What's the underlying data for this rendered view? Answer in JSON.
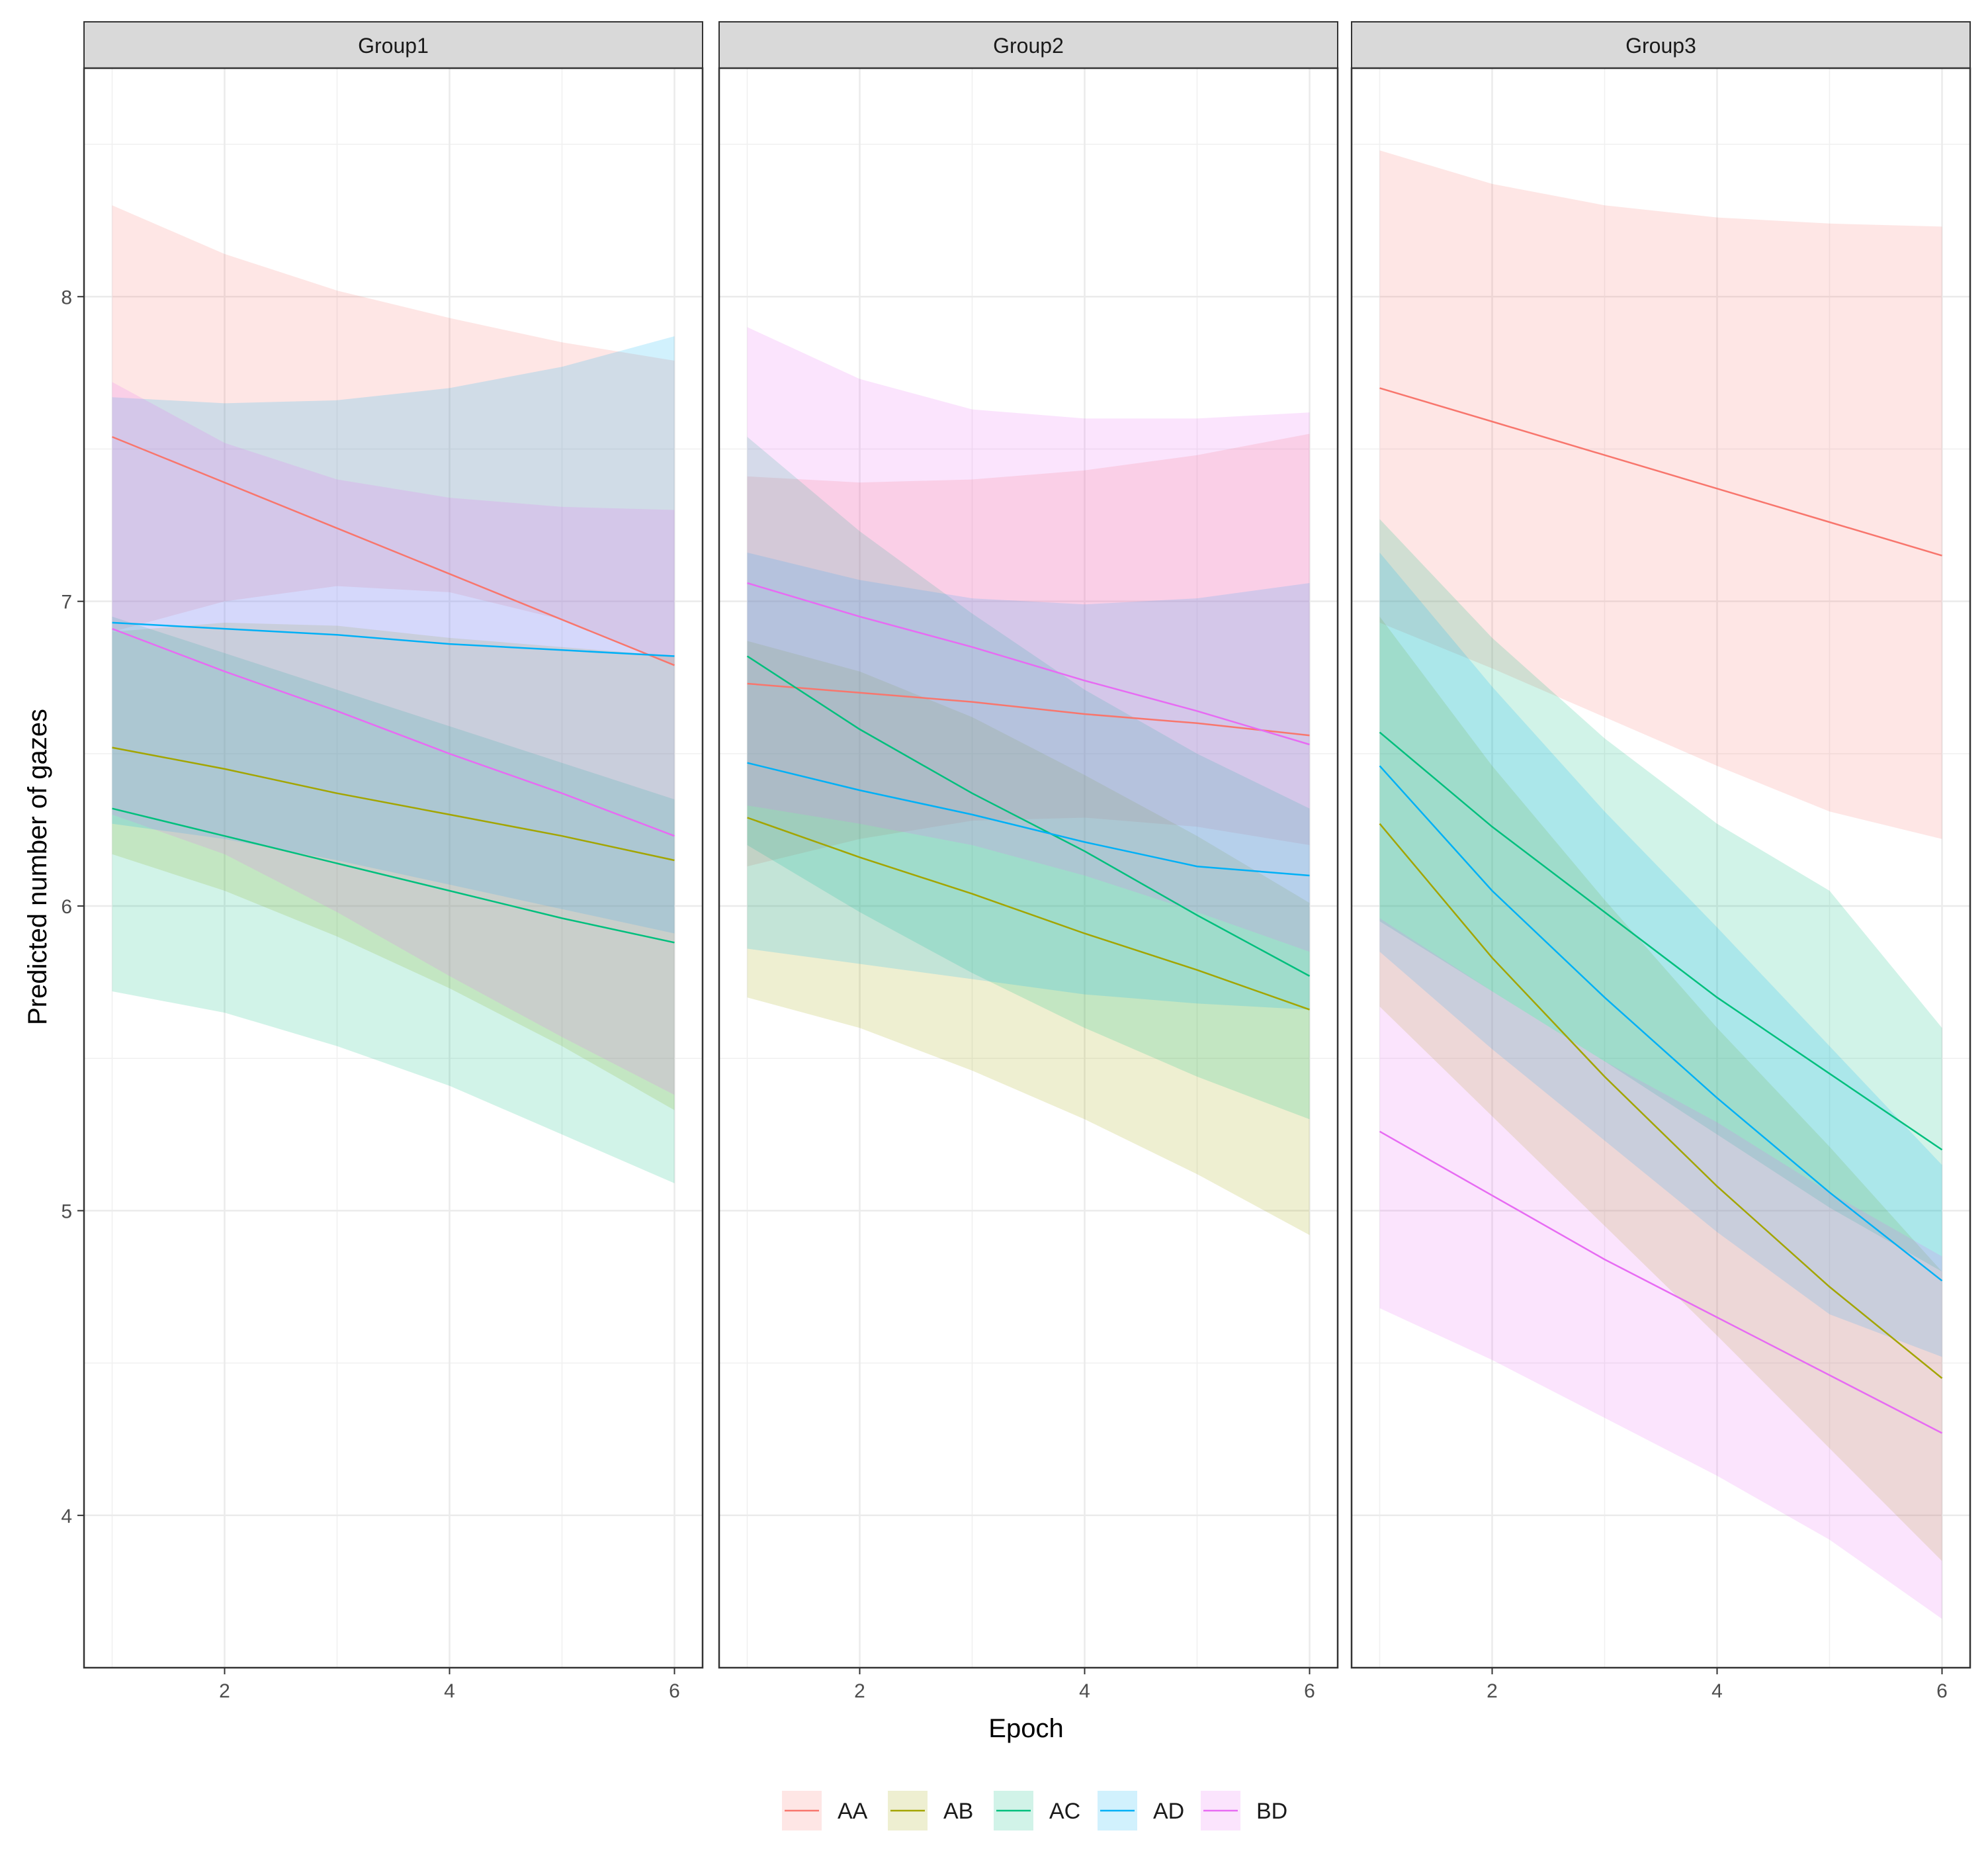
{
  "chart_data": {
    "type": "line",
    "subtype": "faceted line with confidence ribbons",
    "title": "",
    "xlabel": "Epoch",
    "ylabel": "Predicted number of gazes",
    "xlim": [
      0.75,
      6.25
    ],
    "ylim": [
      3.5,
      8.75
    ],
    "x_ticks": [
      2,
      4,
      6
    ],
    "y_ticks": [
      4,
      5,
      6,
      7,
      8
    ],
    "grid": true,
    "legend_position": "bottom",
    "ribbon_alpha": 0.18,
    "x": [
      1,
      2,
      3,
      4,
      5,
      6
    ],
    "series_meta": [
      {
        "name": "AA",
        "color": "#F8766D"
      },
      {
        "name": "AB",
        "color": "#A3A500"
      },
      {
        "name": "AC",
        "color": "#00BF7D"
      },
      {
        "name": "AD",
        "color": "#00B0F6"
      },
      {
        "name": "BD",
        "color": "#E76BF3"
      }
    ],
    "panels": [
      {
        "title": "Group1",
        "series": [
          {
            "name": "AA",
            "values": [
              7.54,
              7.39,
              7.24,
              7.09,
              6.94,
              6.79
            ],
            "lower": [
              6.9,
              7.0,
              7.05,
              7.03,
              6.94,
              6.79
            ],
            "upper": [
              8.3,
              8.14,
              8.02,
              7.93,
              7.85,
              7.79
            ]
          },
          {
            "name": "AB",
            "values": [
              6.52,
              6.45,
              6.37,
              6.3,
              6.23,
              6.15
            ],
            "lower": [
              6.17,
              6.05,
              5.9,
              5.73,
              5.54,
              5.33
            ],
            "upper": [
              6.9,
              6.93,
              6.92,
              6.88,
              6.85,
              6.82
            ]
          },
          {
            "name": "AC",
            "values": [
              6.32,
              6.23,
              6.14,
              6.05,
              5.96,
              5.88
            ],
            "lower": [
              5.72,
              5.65,
              5.54,
              5.41,
              5.25,
              5.09
            ],
            "upper": [
              6.95,
              6.83,
              6.71,
              6.59,
              6.47,
              6.35
            ]
          },
          {
            "name": "AD",
            "values": [
              6.93,
              6.91,
              6.89,
              6.86,
              6.84,
              6.82
            ],
            "lower": [
              6.27,
              6.22,
              6.15,
              6.07,
              5.99,
              5.91
            ],
            "upper": [
              7.67,
              7.65,
              7.66,
              7.7,
              7.77,
              7.87
            ]
          },
          {
            "name": "BD",
            "values": [
              6.91,
              6.77,
              6.64,
              6.5,
              6.37,
              6.23
            ],
            "lower": [
              6.3,
              6.17,
              5.98,
              5.77,
              5.57,
              5.38
            ],
            "upper": [
              7.72,
              7.52,
              7.4,
              7.34,
              7.31,
              7.3
            ]
          }
        ]
      },
      {
        "title": "Group2",
        "series": [
          {
            "name": "AA",
            "values": [
              6.73,
              6.7,
              6.67,
              6.63,
              6.6,
              6.56
            ],
            "lower": [
              6.13,
              6.22,
              6.28,
              6.29,
              6.26,
              6.2
            ],
            "upper": [
              7.41,
              7.39,
              7.4,
              7.43,
              7.48,
              7.55
            ]
          },
          {
            "name": "AB",
            "values": [
              6.29,
              6.16,
              6.04,
              5.91,
              5.79,
              5.66
            ],
            "lower": [
              5.7,
              5.6,
              5.46,
              5.3,
              5.12,
              4.92
            ],
            "upper": [
              6.87,
              6.77,
              6.62,
              6.43,
              6.23,
              6.01
            ]
          },
          {
            "name": "AC",
            "values": [
              6.82,
              6.58,
              6.37,
              6.18,
              5.97,
              5.77
            ],
            "lower": [
              6.2,
              5.98,
              5.78,
              5.6,
              5.44,
              5.3
            ],
            "upper": [
              7.54,
              7.23,
              6.96,
              6.71,
              6.5,
              6.32
            ]
          },
          {
            "name": "AD",
            "values": [
              6.47,
              6.38,
              6.3,
              6.21,
              6.13,
              6.1
            ],
            "lower": [
              5.86,
              5.81,
              5.76,
              5.71,
              5.68,
              5.66
            ],
            "upper": [
              7.16,
              7.07,
              7.01,
              6.99,
              7.01,
              7.06
            ]
          },
          {
            "name": "BD",
            "values": [
              7.06,
              6.95,
              6.85,
              6.74,
              6.64,
              6.53
            ],
            "lower": [
              6.33,
              6.27,
              6.2,
              6.1,
              5.98,
              5.85
            ],
            "upper": [
              7.9,
              7.73,
              7.63,
              7.6,
              7.6,
              7.62
            ]
          }
        ]
      },
      {
        "title": "Group3",
        "series": [
          {
            "name": "AA",
            "values": [
              7.7,
              7.59,
              7.48,
              7.37,
              7.26,
              7.15
            ],
            "lower": [
              6.93,
              6.78,
              6.62,
              6.46,
              6.31,
              6.22
            ],
            "upper": [
              8.48,
              8.37,
              8.3,
              8.26,
              8.24,
              8.23
            ]
          },
          {
            "name": "AB",
            "values": [
              6.27,
              5.83,
              5.44,
              5.08,
              4.75,
              4.45
            ],
            "lower": [
              5.67,
              5.31,
              4.95,
              4.59,
              4.22,
              3.85
            ],
            "upper": [
              6.95,
              6.46,
              6.02,
              5.6,
              5.21,
              4.8
            ]
          },
          {
            "name": "AC",
            "values": [
              6.57,
              6.26,
              5.98,
              5.7,
              5.45,
              5.2
            ],
            "lower": [
              5.95,
              5.72,
              5.49,
              5.25,
              5.01,
              4.8
            ],
            "upper": [
              7.27,
              6.88,
              6.55,
              6.27,
              6.05,
              5.6
            ]
          },
          {
            "name": "AD",
            "values": [
              6.46,
              6.05,
              5.7,
              5.37,
              5.06,
              4.77
            ],
            "lower": [
              5.85,
              5.53,
              5.23,
              4.93,
              4.66,
              4.52
            ],
            "upper": [
              7.16,
              6.72,
              6.31,
              5.93,
              5.54,
              5.15
            ]
          },
          {
            "name": "BD",
            "values": [
              5.26,
              5.05,
              4.84,
              4.65,
              4.46,
              4.27
            ],
            "lower": [
              4.68,
              4.51,
              4.32,
              4.13,
              3.92,
              3.66
            ],
            "upper": [
              5.96,
              5.72,
              5.49,
              5.29,
              5.06,
              4.85
            ]
          }
        ]
      }
    ]
  }
}
